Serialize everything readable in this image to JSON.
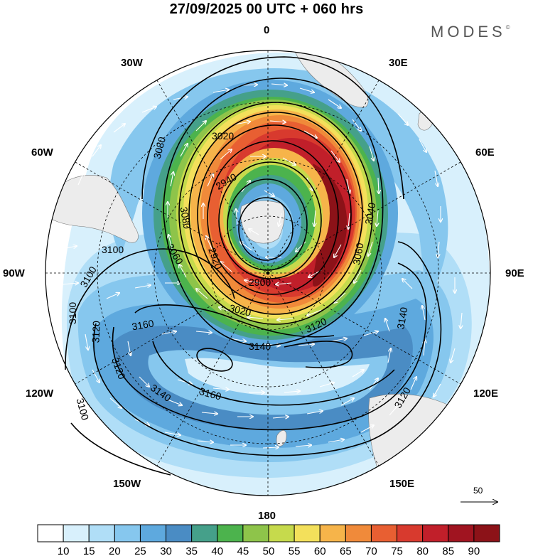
{
  "title": "27/09/2025  00 UTC  + 060 hrs",
  "brand": {
    "name": "MODES",
    "mark": "©"
  },
  "map": {
    "projection": "polar-stereographic-south",
    "meridian_labels": {
      "m0": "0",
      "m30e": "30E",
      "m60e": "60E",
      "m90e": "90E",
      "m120e": "120E",
      "m150e": "150E",
      "m180": "180",
      "m150w": "150W",
      "m120w": "120W",
      "m90w": "90W",
      "m60w": "60W",
      "m30w": "30W"
    },
    "contour_labels": [
      "3020",
      "3080",
      "2940",
      "3040",
      "3060",
      "2920",
      "2900",
      "3100",
      "3100",
      "3060",
      "3080",
      "3020",
      "3120",
      "3100",
      "3120",
      "3140",
      "3160",
      "3140",
      "3120",
      "3120",
      "3160",
      "3140",
      "3100"
    ],
    "wind_reference": {
      "value": "50"
    }
  },
  "colorbar": {
    "ticks": [
      "10",
      "15",
      "20",
      "25",
      "30",
      "35",
      "40",
      "45",
      "50",
      "55",
      "60",
      "65",
      "70",
      "75",
      "80",
      "85",
      "90"
    ],
    "colors": [
      "#ffffff",
      "#d8f0fc",
      "#b0def7",
      "#86c7ee",
      "#5ea9de",
      "#4a8cc4",
      "#45a08a",
      "#4cb34d",
      "#8ec44a",
      "#c6da4c",
      "#f3e05b",
      "#f6b44a",
      "#f08a3a",
      "#e85f32",
      "#d83a2e",
      "#c11f2a",
      "#a01420",
      "#8c1218"
    ]
  }
}
